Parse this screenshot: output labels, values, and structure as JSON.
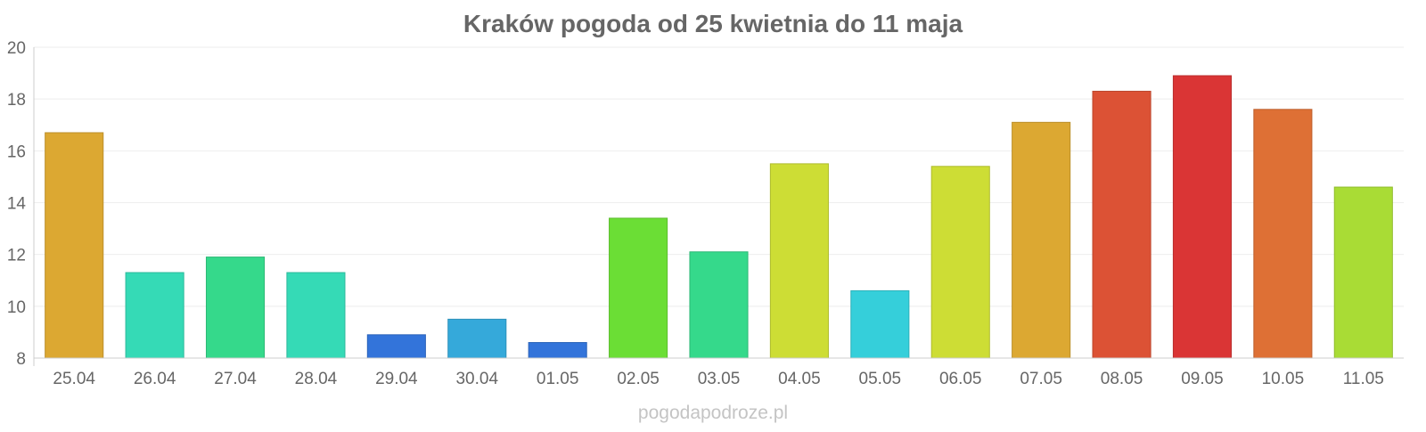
{
  "chart_data": {
    "type": "bar",
    "title": "Kraków pogoda od 25 kwietnia do 11 maja",
    "xlabel": "",
    "ylabel": "",
    "ylim": [
      8,
      20
    ],
    "y_ticks": [
      8,
      10,
      12,
      14,
      16,
      18,
      20
    ],
    "grid": true,
    "legend": "none",
    "categories": [
      "25.04",
      "26.04",
      "27.04",
      "28.04",
      "29.04",
      "30.04",
      "01.05",
      "02.05",
      "03.05",
      "04.05",
      "05.05",
      "06.05",
      "07.05",
      "08.05",
      "09.05",
      "10.05",
      "11.05"
    ],
    "values": [
      16.7,
      11.3,
      11.9,
      11.3,
      8.9,
      9.5,
      8.6,
      13.4,
      12.1,
      15.5,
      10.6,
      15.4,
      17.1,
      18.3,
      18.9,
      17.6,
      14.6
    ],
    "colors": [
      "#dca832",
      "#35dab6",
      "#35d98b",
      "#35dab6",
      "#3374da",
      "#35a9da",
      "#3374da",
      "#6bde35",
      "#35d98b",
      "#cddd35",
      "#35cfda",
      "#cddd35",
      "#dca832",
      "#dc5235",
      "#da3535",
      "#de7035",
      "#a9dc35"
    ],
    "credit": "pogodapodroze.pl"
  }
}
